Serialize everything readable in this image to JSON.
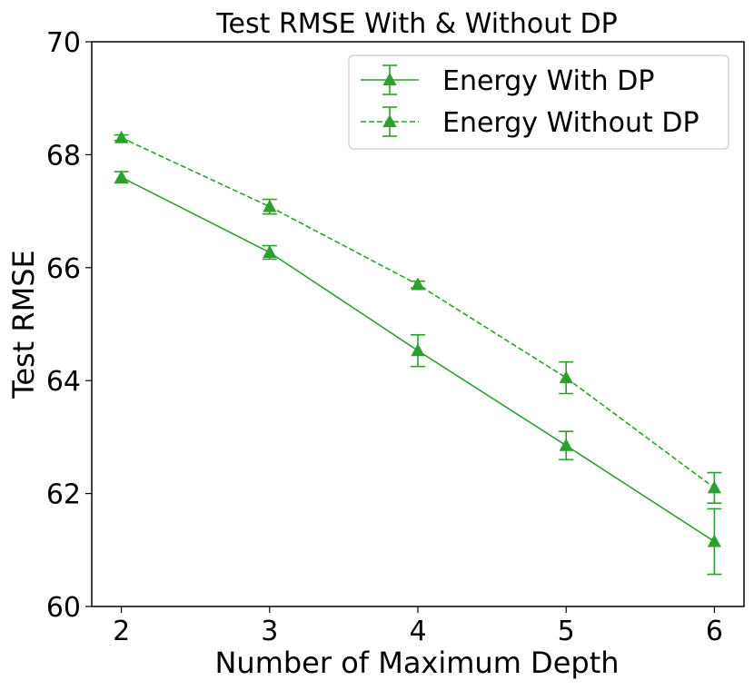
{
  "chart_data": {
    "type": "line",
    "title": "Test RMSE With & Without DP",
    "xlabel": "Number of Maximum Depth",
    "ylabel": "Test RMSE",
    "x": [
      2,
      3,
      4,
      5,
      6
    ],
    "xlim": [
      1.8,
      6.2
    ],
    "ylim": [
      60,
      70
    ],
    "xticks": [
      "2",
      "3",
      "4",
      "5",
      "6"
    ],
    "yticks": [
      "60",
      "62",
      "64",
      "66",
      "68",
      "70"
    ],
    "grid": false,
    "legend_position": "top-right",
    "color": "#2ca02c",
    "series": [
      {
        "name": "Energy With DP",
        "linestyle": "solid",
        "marker": "triangle",
        "values": [
          67.6,
          66.27,
          64.53,
          62.85,
          61.15
        ],
        "errors": [
          0.1,
          0.12,
          0.28,
          0.25,
          0.58
        ]
      },
      {
        "name": "Energy Without DP",
        "linestyle": "dashed",
        "marker": "triangle",
        "values": [
          68.3,
          67.08,
          65.7,
          64.05,
          62.1
        ],
        "errors": [
          0.05,
          0.13,
          0.06,
          0.28,
          0.27
        ]
      }
    ]
  }
}
